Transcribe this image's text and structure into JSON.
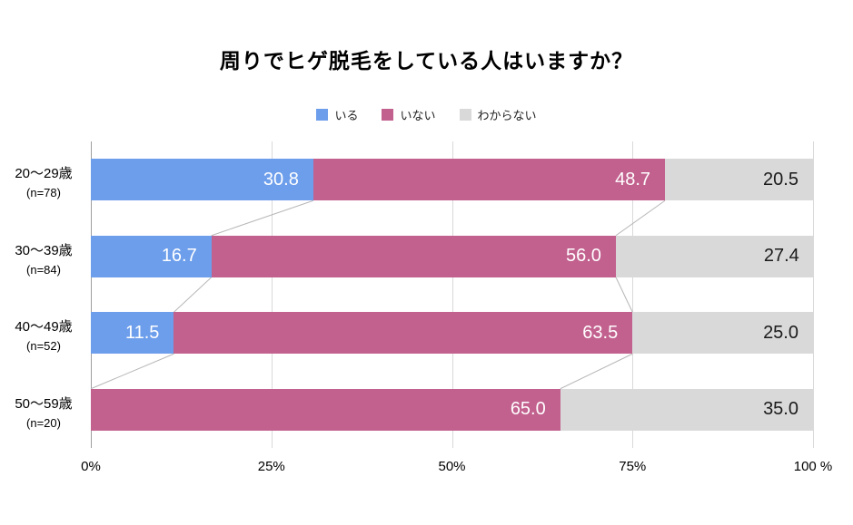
{
  "chart_data": {
    "type": "bar",
    "stacked": true,
    "orientation": "horizontal",
    "title": "周りでヒゲ脱毛をしている人はいますか？",
    "categories": [
      "20〜29歳",
      "30〜39歳",
      "40〜49歳",
      "50〜59歳"
    ],
    "category_counts": [
      "(n=78)",
      "(n=84)",
      "(n=52)",
      "(n=20)"
    ],
    "series": [
      {
        "name": "いる",
        "color": "#6d9eeb",
        "text_color": "#ffffff",
        "values": [
          30.8,
          16.7,
          11.5,
          0
        ]
      },
      {
        "name": "いない",
        "color": "#c2608e",
        "text_color": "#ffffff",
        "values": [
          48.7,
          56.0,
          63.5,
          65.0
        ]
      },
      {
        "name": "わからない",
        "color": "#d9d9d9",
        "text_color": "#1a1a1a",
        "values": [
          20.5,
          27.4,
          25.0,
          35.0
        ]
      }
    ],
    "xlim": [
      0,
      100
    ],
    "x_ticks": [
      {
        "value": 0,
        "label": "0%"
      },
      {
        "value": 25,
        "label": "25%"
      },
      {
        "value": 50,
        "label": "50%"
      },
      {
        "value": 75,
        "label": "75%"
      },
      {
        "value": 100,
        "label": "100 %"
      }
    ],
    "legend_position": "top",
    "grid": true
  },
  "colors": {
    "background": "#ffffff",
    "grid": "#d9d9d9",
    "axis": "#9e9e9e",
    "connector": "#b7b7b7"
  }
}
